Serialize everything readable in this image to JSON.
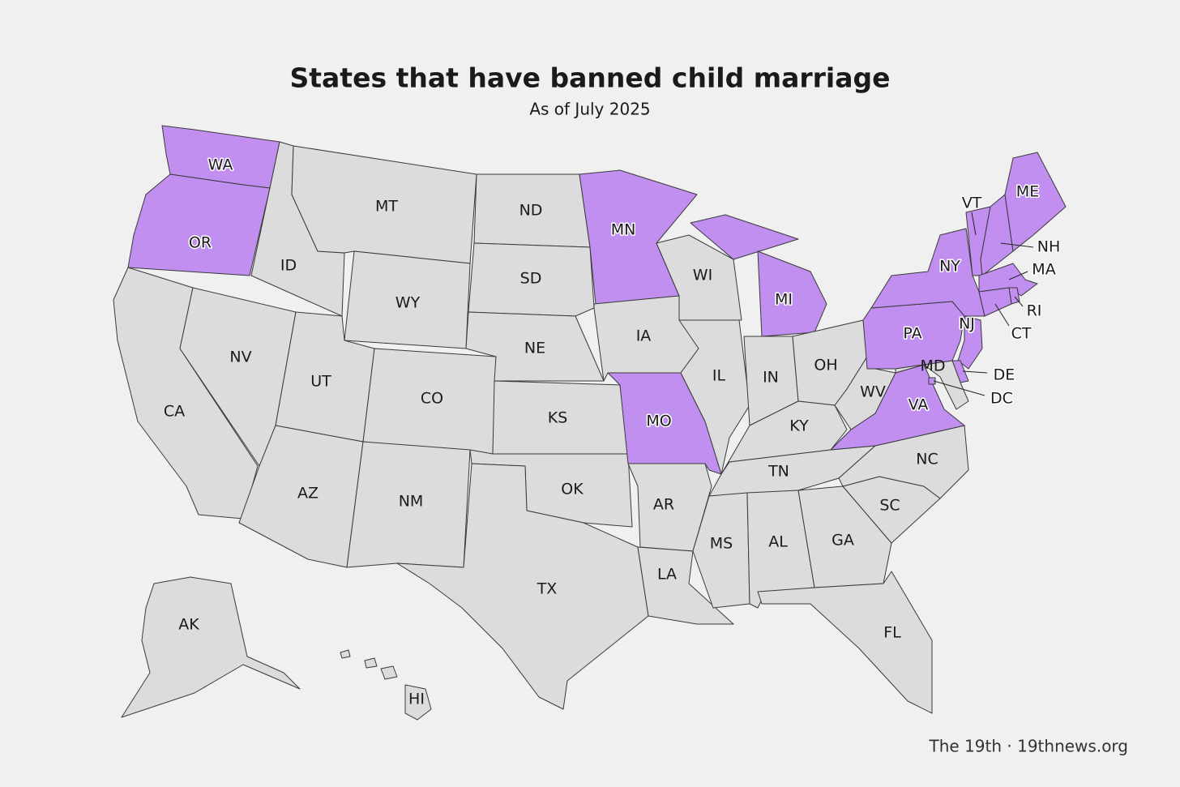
{
  "header": {
    "title": "States that have banned child marriage",
    "subtitle": "As of July 2025"
  },
  "colors": {
    "banned": "#c08ff0",
    "other": "#dcdcdc"
  },
  "states": [
    {
      "label": "WA",
      "banned": true
    },
    {
      "label": "OR",
      "banned": true
    },
    {
      "label": "CA",
      "banned": false
    },
    {
      "label": "ID",
      "banned": false
    },
    {
      "label": "NV",
      "banned": false
    },
    {
      "label": "MT",
      "banned": false
    },
    {
      "label": "WY",
      "banned": false
    },
    {
      "label": "UT",
      "banned": false
    },
    {
      "label": "AZ",
      "banned": false
    },
    {
      "label": "CO",
      "banned": false
    },
    {
      "label": "NM",
      "banned": false
    },
    {
      "label": "ND",
      "banned": false
    },
    {
      "label": "SD",
      "banned": false
    },
    {
      "label": "NE",
      "banned": false
    },
    {
      "label": "KS",
      "banned": false
    },
    {
      "label": "OK",
      "banned": false
    },
    {
      "label": "TX",
      "banned": false
    },
    {
      "label": "MN",
      "banned": true
    },
    {
      "label": "IA",
      "banned": false
    },
    {
      "label": "MO",
      "banned": true
    },
    {
      "label": "AR",
      "banned": false
    },
    {
      "label": "LA",
      "banned": false
    },
    {
      "label": "WI",
      "banned": false
    },
    {
      "label": "IL",
      "banned": false
    },
    {
      "label": "MI",
      "banned": true
    },
    {
      "label": "IN",
      "banned": false
    },
    {
      "label": "OH",
      "banned": false
    },
    {
      "label": "KY",
      "banned": false
    },
    {
      "label": "TN",
      "banned": false
    },
    {
      "label": "MS",
      "banned": false
    },
    {
      "label": "AL",
      "banned": false
    },
    {
      "label": "GA",
      "banned": false
    },
    {
      "label": "FL",
      "banned": false
    },
    {
      "label": "SC",
      "banned": false
    },
    {
      "label": "NC",
      "banned": false
    },
    {
      "label": "VA",
      "banned": true
    },
    {
      "label": "WV",
      "banned": false
    },
    {
      "label": "PA",
      "banned": true
    },
    {
      "label": "NY",
      "banned": true
    },
    {
      "label": "VT",
      "banned": true
    },
    {
      "label": "NH",
      "banned": true
    },
    {
      "label": "ME",
      "banned": true
    },
    {
      "label": "MA",
      "banned": true
    },
    {
      "label": "RI",
      "banned": true
    },
    {
      "label": "CT",
      "banned": true
    },
    {
      "label": "NJ",
      "banned": true
    },
    {
      "label": "DE",
      "banned": true
    },
    {
      "label": "MD",
      "banned": false
    },
    {
      "label": "DC",
      "banned": true
    },
    {
      "label": "AK",
      "banned": false
    },
    {
      "label": "HI",
      "banned": false
    }
  ],
  "footer": {
    "source": "The 19th · 19thnews.org"
  }
}
